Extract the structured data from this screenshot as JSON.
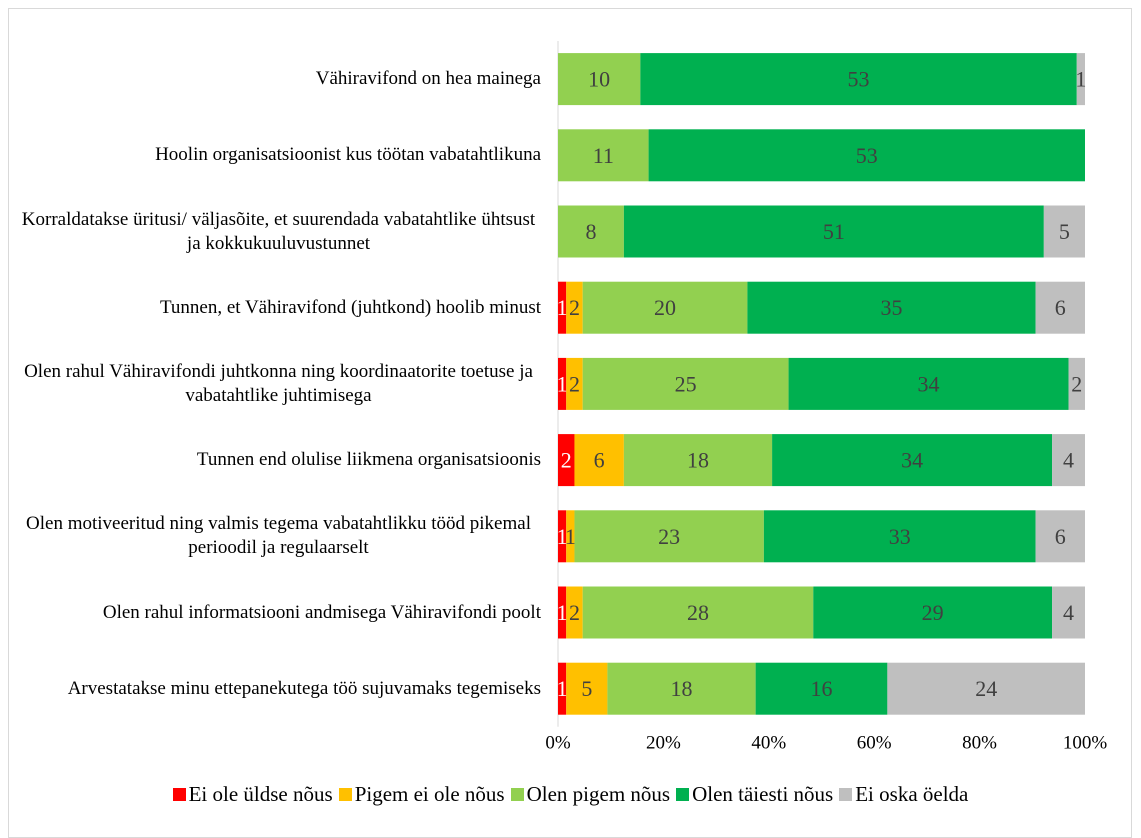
{
  "chart_data": {
    "type": "stacked_bar_100",
    "orientation": "horizontal",
    "categories": [
      "Vähiravifond on hea mainega",
      "Hoolin organisatsioonist kus töötan vabatahtlikuna",
      "Korraldatakse üritusi/ väljasõite, et suurendada vabatahtlike ühtsust ja kokkukuuluvustunnet",
      "Tunnen, et Vähiravifond (juhtkond) hoolib minust",
      "Olen rahul Vähiravifondi juhtkonna ning koordinaatorite toetuse ja vabatahtlike juhtimisega",
      "Tunnen end olulise liikmena organisatsioonis",
      "Olen motiveeritud ning valmis tegema vabatahtlikku tööd pikemal perioodil ja regulaarselt",
      "Olen rahul informatsiooni andmisega Vähiravifondi poolt",
      "Arvestatakse minu ettepanekutega töö sujuvamaks tegemiseks"
    ],
    "series": [
      {
        "name": "Ei ole üldse nõus",
        "color": "#ff0000",
        "values": [
          0,
          0,
          0,
          1,
          1,
          2,
          1,
          1,
          1
        ]
      },
      {
        "name": "Pigem ei ole nõus",
        "color": "#ffc000",
        "values": [
          0,
          0,
          0,
          2,
          2,
          6,
          1,
          2,
          5
        ]
      },
      {
        "name": "Olen pigem nõus",
        "color": "#92d050",
        "values": [
          10,
          11,
          8,
          20,
          25,
          18,
          23,
          28,
          18
        ]
      },
      {
        "name": "Olen täiesti nõus",
        "color": "#00b050",
        "values": [
          53,
          53,
          51,
          35,
          34,
          34,
          33,
          29,
          16
        ]
      },
      {
        "name": "Ei oska öelda",
        "color": "#bfbfbf",
        "values": [
          1,
          0,
          5,
          6,
          2,
          4,
          6,
          4,
          24
        ]
      }
    ],
    "xlim": [
      0,
      100
    ],
    "xticks": [
      {
        "value": 0,
        "label": "0%"
      },
      {
        "value": 20,
        "label": "20%"
      },
      {
        "value": 40,
        "label": "40%"
      },
      {
        "value": 60,
        "label": "60%"
      },
      {
        "value": 80,
        "label": "80%"
      },
      {
        "value": 100,
        "label": "100%"
      }
    ],
    "legend": "bottom"
  }
}
